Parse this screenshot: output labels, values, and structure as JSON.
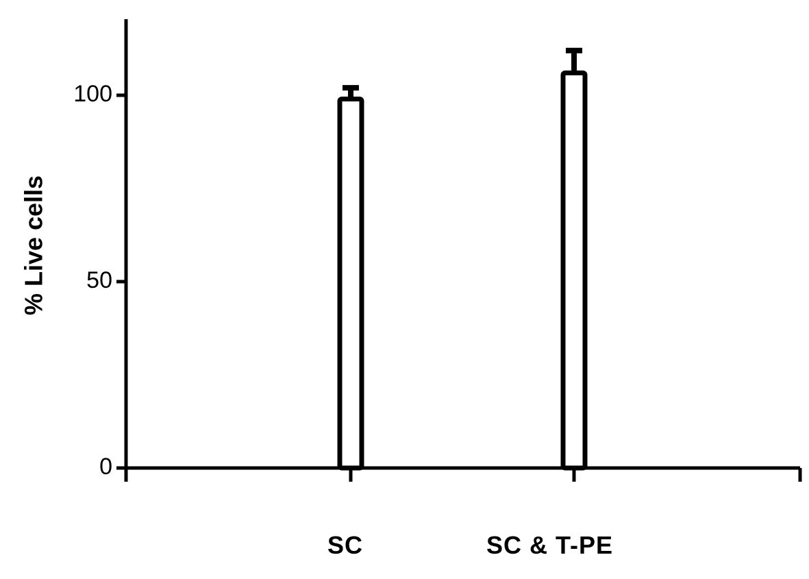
{
  "chart_data": {
    "type": "bar",
    "title": "",
    "xlabel": "",
    "ylabel": "% Live cells",
    "categories": [
      "SC",
      "SC & T-PE"
    ],
    "values": [
      99,
      106
    ],
    "error_bars": [
      3,
      6
    ],
    "ylim": [
      0,
      120
    ],
    "yticks": [
      0,
      50,
      100
    ],
    "grid": false,
    "legend": "none",
    "colors": {
      "bar_fill": "#ffffff",
      "bar_stroke": "#000000",
      "axis": "#000000"
    }
  }
}
